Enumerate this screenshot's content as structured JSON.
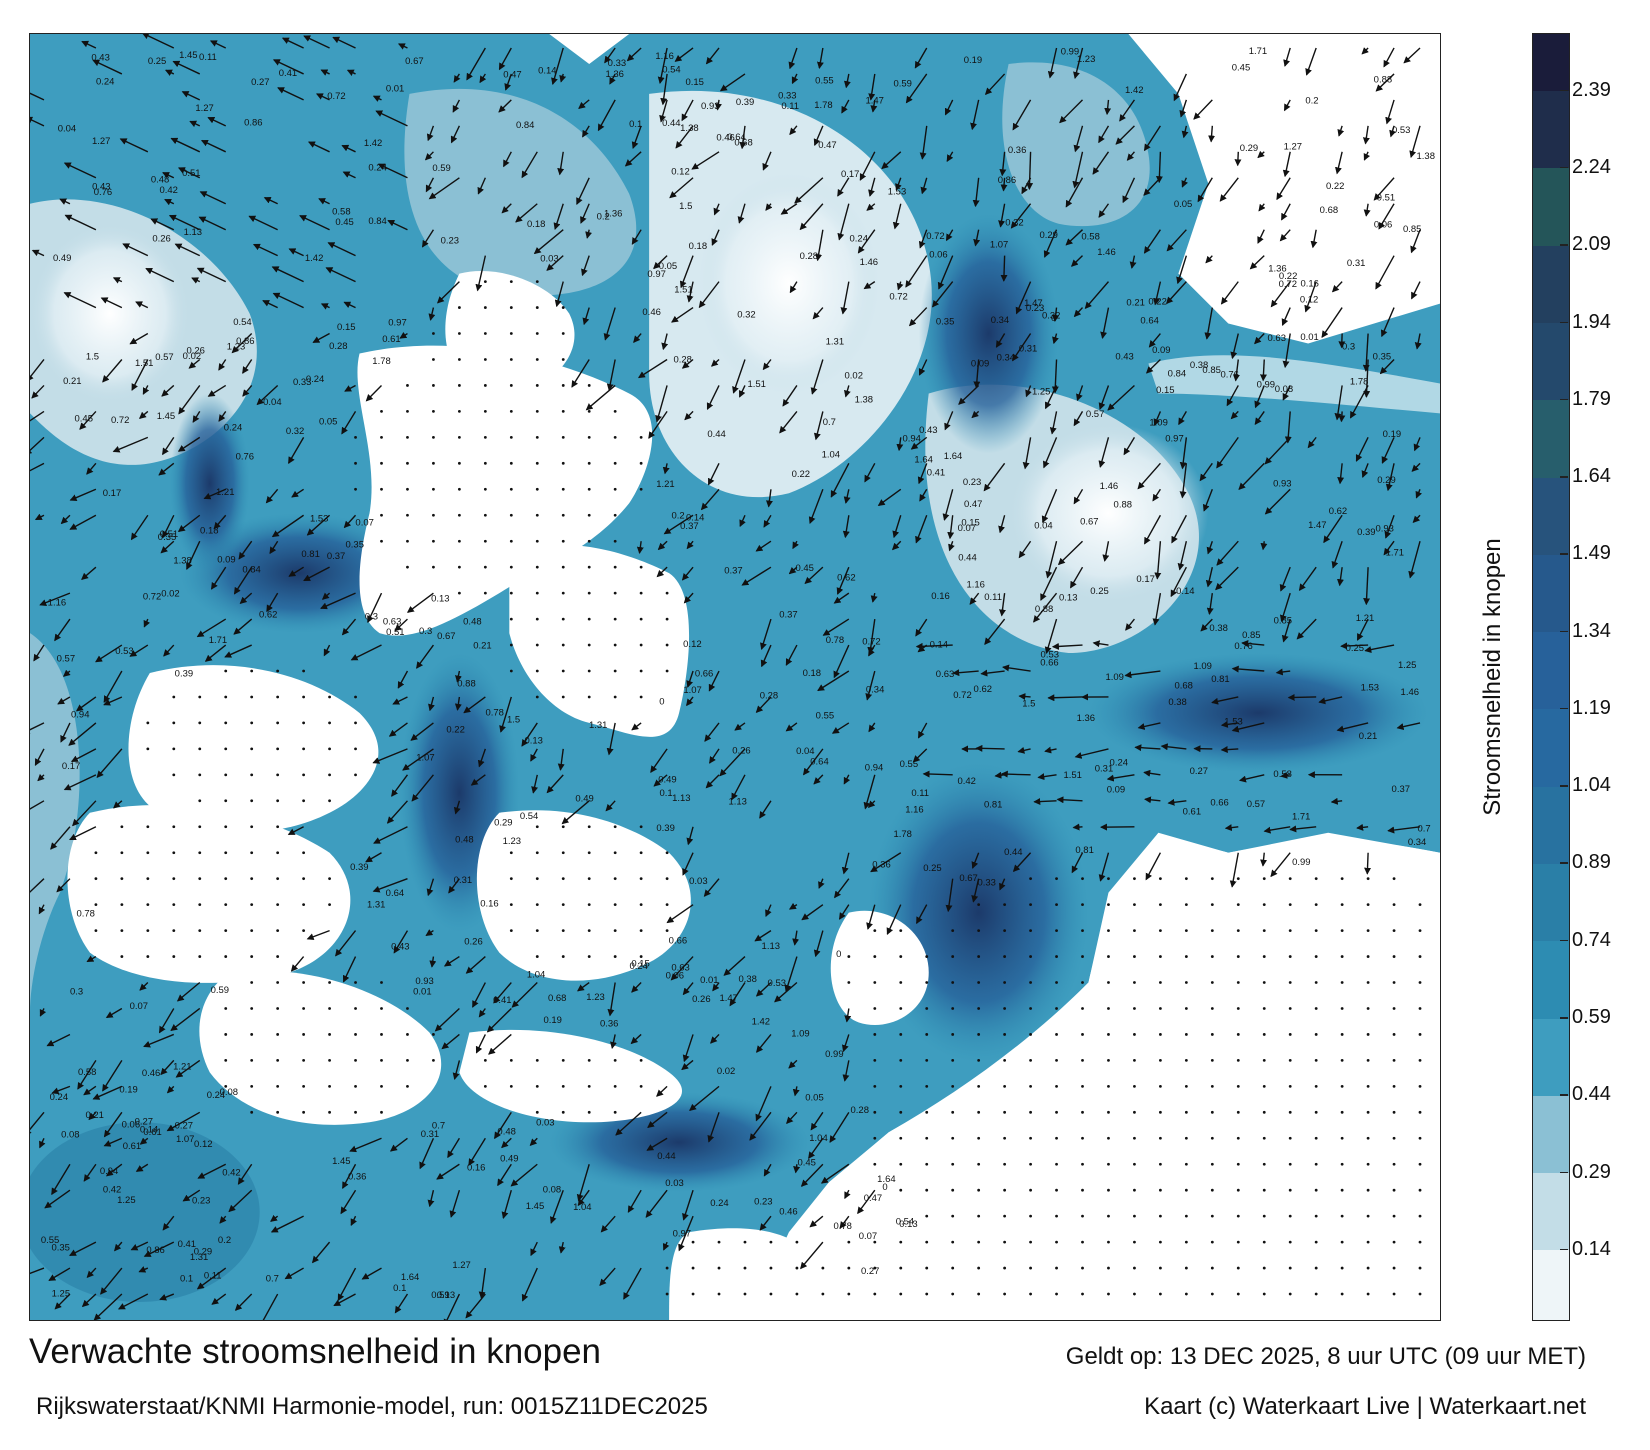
{
  "map": {
    "title": "Verwachte stroomsnelheid in knopen",
    "model_run": "Rijkswaterstaat/KNMI Harmonie-model, run: 0015Z11DEC2025",
    "valid_time": "Geldt op: 13 DEC 2025, 8 uur UTC (09 uur MET)",
    "credit": "Kaart (c) Waterkaart Live | Waterkaart.net",
    "region": "Nederlandse kust, Westerschelde en Oosterschelde",
    "colors": {
      "land": "#ffffff",
      "vector": "#111111",
      "frame": "#222222"
    }
  },
  "colorbar": {
    "label": "Stroomsnelheid in knopen",
    "ticks": [
      "2.39",
      "2.24",
      "2.09",
      "1.94",
      "1.79",
      "1.64",
      "1.49",
      "1.34",
      "1.19",
      "1.04",
      "0.89",
      "0.74",
      "0.59",
      "0.44",
      "0.29",
      "0.14"
    ],
    "min": 0,
    "max": 2.5,
    "bands": [
      {
        "from": 0.0,
        "to": 0.14,
        "color": "#eef5f8"
      },
      {
        "from": 0.14,
        "to": 0.29,
        "color": "#c3dde7"
      },
      {
        "from": 0.29,
        "to": 0.44,
        "color": "#8bc0d4"
      },
      {
        "from": 0.44,
        "to": 0.59,
        "color": "#3e9dbf"
      },
      {
        "from": 0.59,
        "to": 0.74,
        "color": "#2d8cb2"
      },
      {
        "from": 0.74,
        "to": 0.89,
        "color": "#2a7fa7"
      },
      {
        "from": 0.89,
        "to": 1.04,
        "color": "#2872a0"
      },
      {
        "from": 1.04,
        "to": 1.19,
        "color": "#2769a0"
      },
      {
        "from": 1.19,
        "to": 1.34,
        "color": "#27619a"
      },
      {
        "from": 1.34,
        "to": 1.49,
        "color": "#26598c"
      },
      {
        "from": 1.49,
        "to": 1.64,
        "color": "#27537c"
      },
      {
        "from": 1.64,
        "to": 1.79,
        "color": "#275e6c"
      },
      {
        "from": 1.79,
        "to": 1.94,
        "color": "#24496c"
      },
      {
        "from": 1.94,
        "to": 2.09,
        "color": "#23405f"
      },
      {
        "from": 2.09,
        "to": 2.24,
        "color": "#245559"
      },
      {
        "from": 2.24,
        "to": 2.39,
        "color": "#1f2d4b"
      },
      {
        "from": 2.39,
        "to": 2.5,
        "color": "#1a1c3a"
      }
    ]
  },
  "speed_labels": [
    {
      "v": "0.39"
    },
    {
      "v": "0.37"
    },
    {
      "v": "0.27"
    },
    {
      "v": "0.24"
    },
    {
      "v": "0.23"
    },
    {
      "v": "0.15"
    },
    {
      "v": "0.22"
    },
    {
      "v": "0.26"
    },
    {
      "v": "0.13"
    },
    {
      "v": "0.14"
    },
    {
      "v": "0.11"
    },
    {
      "v": "0.24"
    },
    {
      "v": "0.21"
    },
    {
      "v": "0.28"
    },
    {
      "v": "0.29"
    },
    {
      "v": "0.31"
    },
    {
      "v": "0.35"
    },
    {
      "v": "0.43"
    },
    {
      "v": "0.44"
    },
    {
      "v": "0.45"
    },
    {
      "v": "0.46"
    },
    {
      "v": "0.09"
    },
    {
      "v": "0.19"
    },
    {
      "v": "0.16"
    },
    {
      "v": "0.12"
    },
    {
      "v": "0.32"
    },
    {
      "v": "0.17"
    },
    {
      "v": "0.18"
    },
    {
      "v": "0.41"
    },
    {
      "v": "0.49"
    },
    {
      "v": "0.53"
    },
    {
      "v": "0.57"
    },
    {
      "v": "0.63"
    },
    {
      "v": "0.61"
    },
    {
      "v": "0.66"
    },
    {
      "v": "0.67"
    },
    {
      "v": "0.72"
    },
    {
      "v": "0.78"
    },
    {
      "v": "0.88"
    },
    {
      "v": "0.94"
    },
    {
      "v": "1.42"
    },
    {
      "v": "1.78"
    },
    {
      "v": "1.64"
    },
    {
      "v": "1.45"
    },
    {
      "v": "1.27"
    },
    {
      "v": "1.47"
    },
    {
      "v": "1.36"
    },
    {
      "v": "1.5"
    },
    {
      "v": "1.51"
    },
    {
      "v": "1.38"
    },
    {
      "v": "1.71"
    },
    {
      "v": "1.31"
    },
    {
      "v": "1.23"
    },
    {
      "v": "1.53"
    },
    {
      "v": "1.09"
    },
    {
      "v": "1.04"
    },
    {
      "v": "0.99"
    },
    {
      "v": "0.84"
    },
    {
      "v": "0.85"
    },
    {
      "v": "0.86"
    },
    {
      "v": "0.72"
    },
    {
      "v": "0.7"
    },
    {
      "v": "0.68"
    },
    {
      "v": "0.64"
    },
    {
      "v": "0.59"
    },
    {
      "v": "0.54"
    },
    {
      "v": "0.51"
    },
    {
      "v": "0.47"
    },
    {
      "v": "0.42"
    },
    {
      "v": "0.38"
    },
    {
      "v": "0.33"
    },
    {
      "v": "0.25"
    },
    {
      "v": "0.2"
    },
    {
      "v": "0.1"
    },
    {
      "v": "0.06"
    },
    {
      "v": "0.05"
    },
    {
      "v": "0.04"
    },
    {
      "v": "0.03"
    },
    {
      "v": "0.02"
    },
    {
      "v": "0.01"
    },
    {
      "v": "0"
    },
    {
      "v": "1.46"
    },
    {
      "v": "1.13"
    },
    {
      "v": "1.25"
    },
    {
      "v": "1.07"
    },
    {
      "v": "1.16"
    },
    {
      "v": "1.21"
    },
    {
      "v": "0.97"
    },
    {
      "v": "0.93"
    },
    {
      "v": "0.81"
    },
    {
      "v": "0.76"
    },
    {
      "v": "0.62"
    },
    {
      "v": "0.58"
    },
    {
      "v": "0.55"
    },
    {
      "v": "0.48"
    },
    {
      "v": "0.36"
    },
    {
      "v": "0.34"
    },
    {
      "v": "0.3"
    },
    {
      "v": "0.08"
    },
    {
      "v": "0.07"
    }
  ]
}
